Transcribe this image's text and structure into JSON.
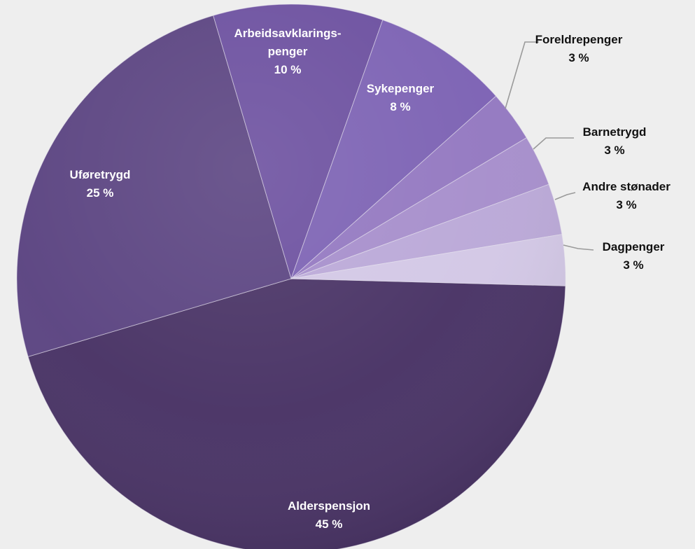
{
  "chart_data": {
    "type": "pie",
    "legend": "none",
    "slices": [
      {
        "label": "Alderspensjon",
        "value": 45,
        "value_label": "45 %",
        "color": "#4a3466"
      },
      {
        "label": "Uføretrygd",
        "value": 25,
        "value_label": "25 %",
        "color": "#5c4582"
      },
      {
        "label": "Arbeidsavklarings-penger",
        "label_lines": [
          "Arbeidsavklarings-",
          "penger"
        ],
        "value": 10,
        "value_label": "10 %",
        "color": "#6d51a0"
      },
      {
        "label": "Sykepenger",
        "value": 8,
        "value_label": "8 %",
        "color": "#7d63b4"
      },
      {
        "label": "Foreldrepenger",
        "value": 3,
        "value_label": "3 %",
        "color": "#9479c1"
      },
      {
        "label": "Barnetrygd",
        "value": 3,
        "value_label": "3 %",
        "color": "#a78fcc"
      },
      {
        "label": "Andre stønader",
        "value": 3,
        "value_label": "3 %",
        "color": "#bba9d8"
      },
      {
        "label": "Dagpenger",
        "value": 3,
        "value_label": "3 %",
        "color": "#d3c8e6"
      }
    ]
  }
}
